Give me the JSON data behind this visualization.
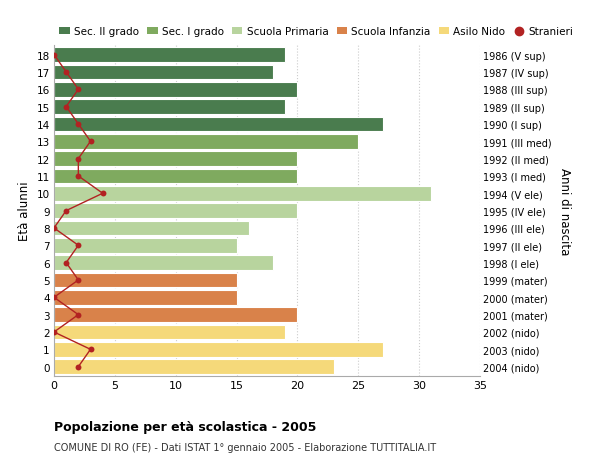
{
  "ages": [
    18,
    17,
    16,
    15,
    14,
    13,
    12,
    11,
    10,
    9,
    8,
    7,
    6,
    5,
    4,
    3,
    2,
    1,
    0
  ],
  "bar_values": [
    19,
    18,
    20,
    19,
    27,
    25,
    20,
    20,
    31,
    20,
    16,
    15,
    18,
    15,
    15,
    20,
    19,
    27,
    23
  ],
  "bar_colors": [
    "#4a7c4e",
    "#4a7c4e",
    "#4a7c4e",
    "#4a7c4e",
    "#4a7c4e",
    "#7faa5f",
    "#7faa5f",
    "#7faa5f",
    "#b8d49e",
    "#b8d49e",
    "#b8d49e",
    "#b8d49e",
    "#b8d49e",
    "#d9824a",
    "#d9824a",
    "#d9824a",
    "#f5d97a",
    "#f5d97a",
    "#f5d97a"
  ],
  "stranieri_values": [
    0,
    1,
    2,
    1,
    2,
    3,
    2,
    2,
    4,
    1,
    0,
    2,
    1,
    2,
    0,
    2,
    0,
    3,
    2
  ],
  "right_labels": [
    "1986 (V sup)",
    "1987 (IV sup)",
    "1988 (III sup)",
    "1989 (II sup)",
    "1990 (I sup)",
    "1991 (III med)",
    "1992 (II med)",
    "1993 (I med)",
    "1994 (V ele)",
    "1995 (IV ele)",
    "1996 (III ele)",
    "1997 (II ele)",
    "1998 (I ele)",
    "1999 (mater)",
    "2000 (mater)",
    "2001 (mater)",
    "2002 (nido)",
    "2003 (nido)",
    "2004 (nido)"
  ],
  "legend_labels": [
    "Sec. II grado",
    "Sec. I grado",
    "Scuola Primaria",
    "Scuola Infanzia",
    "Asilo Nido",
    "Stranieri"
  ],
  "legend_colors": [
    "#4a7c4e",
    "#7faa5f",
    "#b8d49e",
    "#d9824a",
    "#f5d97a",
    "#b22222"
  ],
  "ylabel": "Età alunni",
  "right_ylabel": "Anni di nascita",
  "title": "Popolazione per età scolastica - 2005",
  "subtitle": "COMUNE DI RO (FE) - Dati ISTAT 1° gennaio 2005 - Elaborazione TUTTITALIA.IT",
  "xlim": [
    0,
    35
  ],
  "background_color": "#ffffff",
  "bar_height": 0.85,
  "stranieri_color": "#b22222",
  "grid_color": "#cccccc"
}
